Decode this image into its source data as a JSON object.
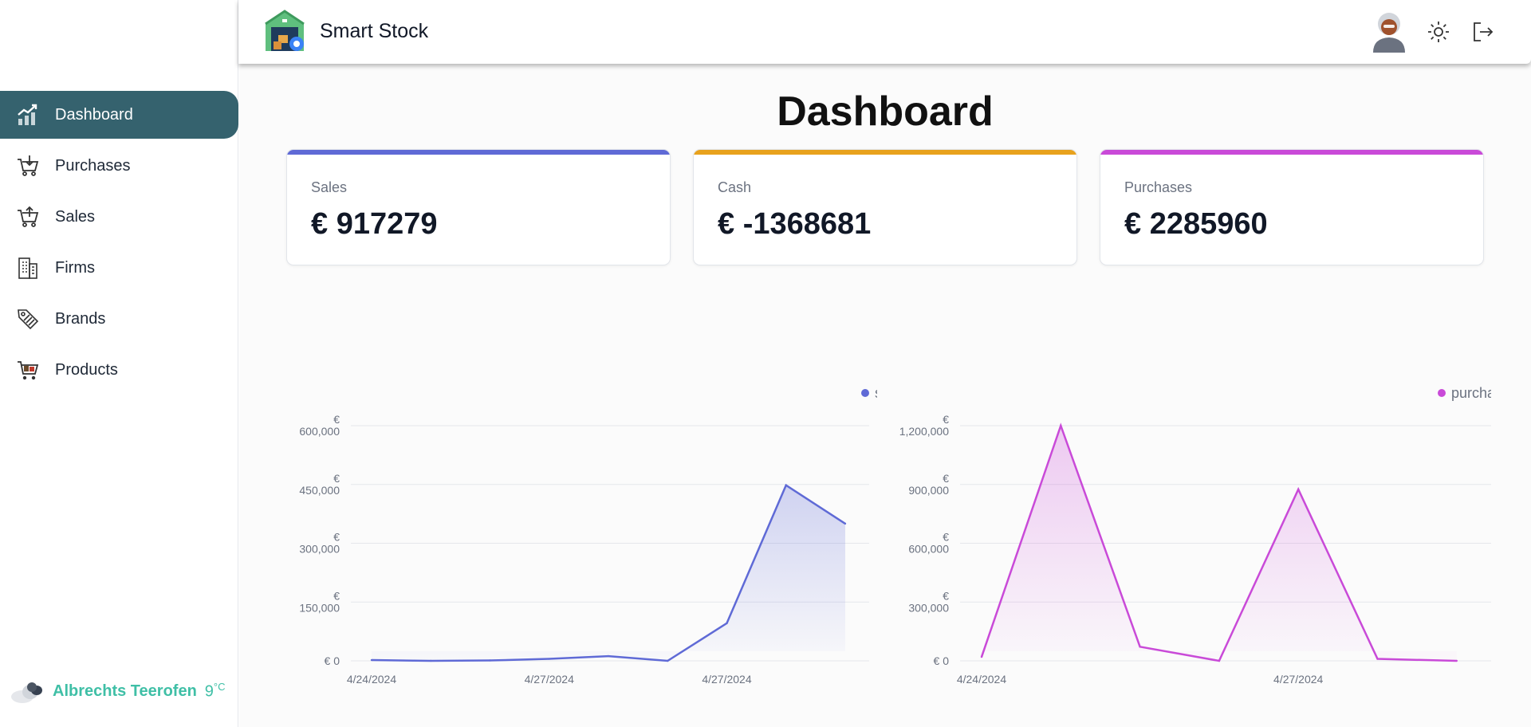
{
  "app": {
    "title": "Smart Stock"
  },
  "sidebar": {
    "items": [
      {
        "label": "Dashboard",
        "icon": "chart-up-icon",
        "active": true
      },
      {
        "label": "Purchases",
        "icon": "cart-in-icon",
        "active": false
      },
      {
        "label": "Sales",
        "icon": "cart-out-icon",
        "active": false
      },
      {
        "label": "Firms",
        "icon": "building-icon",
        "active": false
      },
      {
        "label": "Brands",
        "icon": "tags-icon",
        "active": false
      },
      {
        "label": "Products",
        "icon": "cart-icon",
        "active": false
      }
    ],
    "weather": {
      "city": "Albrechts Teerofen",
      "temp": "9",
      "unit": "°C"
    }
  },
  "header": {
    "avatar_icon": "avatar",
    "theme_icon": "sun-icon",
    "logout_icon": "logout-icon"
  },
  "main": {
    "title": "Dashboard",
    "cards": [
      {
        "label": "Sales",
        "value": "€ 917279",
        "color": "#5f6ad6"
      },
      {
        "label": "Cash",
        "value": "€ -1368681",
        "color": "#e8a21d"
      },
      {
        "label": "Purchases",
        "value": "€ 2285960",
        "color": "#c94ad8"
      }
    ]
  },
  "chart_data": [
    {
      "type": "area",
      "series": [
        {
          "name": "sale",
          "color": "#5f6ad6",
          "values": [
            2000,
            0,
            1000,
            5000,
            12000,
            0,
            96000,
            448000,
            350000
          ]
        }
      ],
      "x_ticks": [
        "4/24/2024",
        "4/27/2024",
        "4/27/2024"
      ],
      "x_tick_indices": [
        0,
        3,
        6
      ],
      "y_ticks": [
        {
          "v": 600000,
          "label": "600,000"
        },
        {
          "v": 450000,
          "label": "450,000"
        },
        {
          "v": 300000,
          "label": "300,000"
        },
        {
          "v": 150000,
          "label": "150,000"
        },
        {
          "v": 0,
          "label": "0"
        }
      ],
      "currency": "€",
      "ylim": [
        0,
        600000
      ],
      "legend": "top-right",
      "grid": true
    },
    {
      "type": "area",
      "series": [
        {
          "name": "purchase",
          "color": "#c94ad8",
          "values": [
            20000,
            1200000,
            72000,
            0,
            875000,
            10000,
            0
          ]
        }
      ],
      "x_ticks": [
        "4/24/2024",
        "4/27/2024"
      ],
      "x_tick_indices": [
        0,
        4
      ],
      "y_ticks": [
        {
          "v": 1200000,
          "label": "1,200,000"
        },
        {
          "v": 900000,
          "label": "900,000"
        },
        {
          "v": 600000,
          "label": "600,000"
        },
        {
          "v": 300000,
          "label": "300,000"
        },
        {
          "v": 0,
          "label": "0"
        }
      ],
      "currency": "€",
      "ylim": [
        0,
        1200000
      ],
      "legend": "top-right",
      "grid": true
    }
  ]
}
